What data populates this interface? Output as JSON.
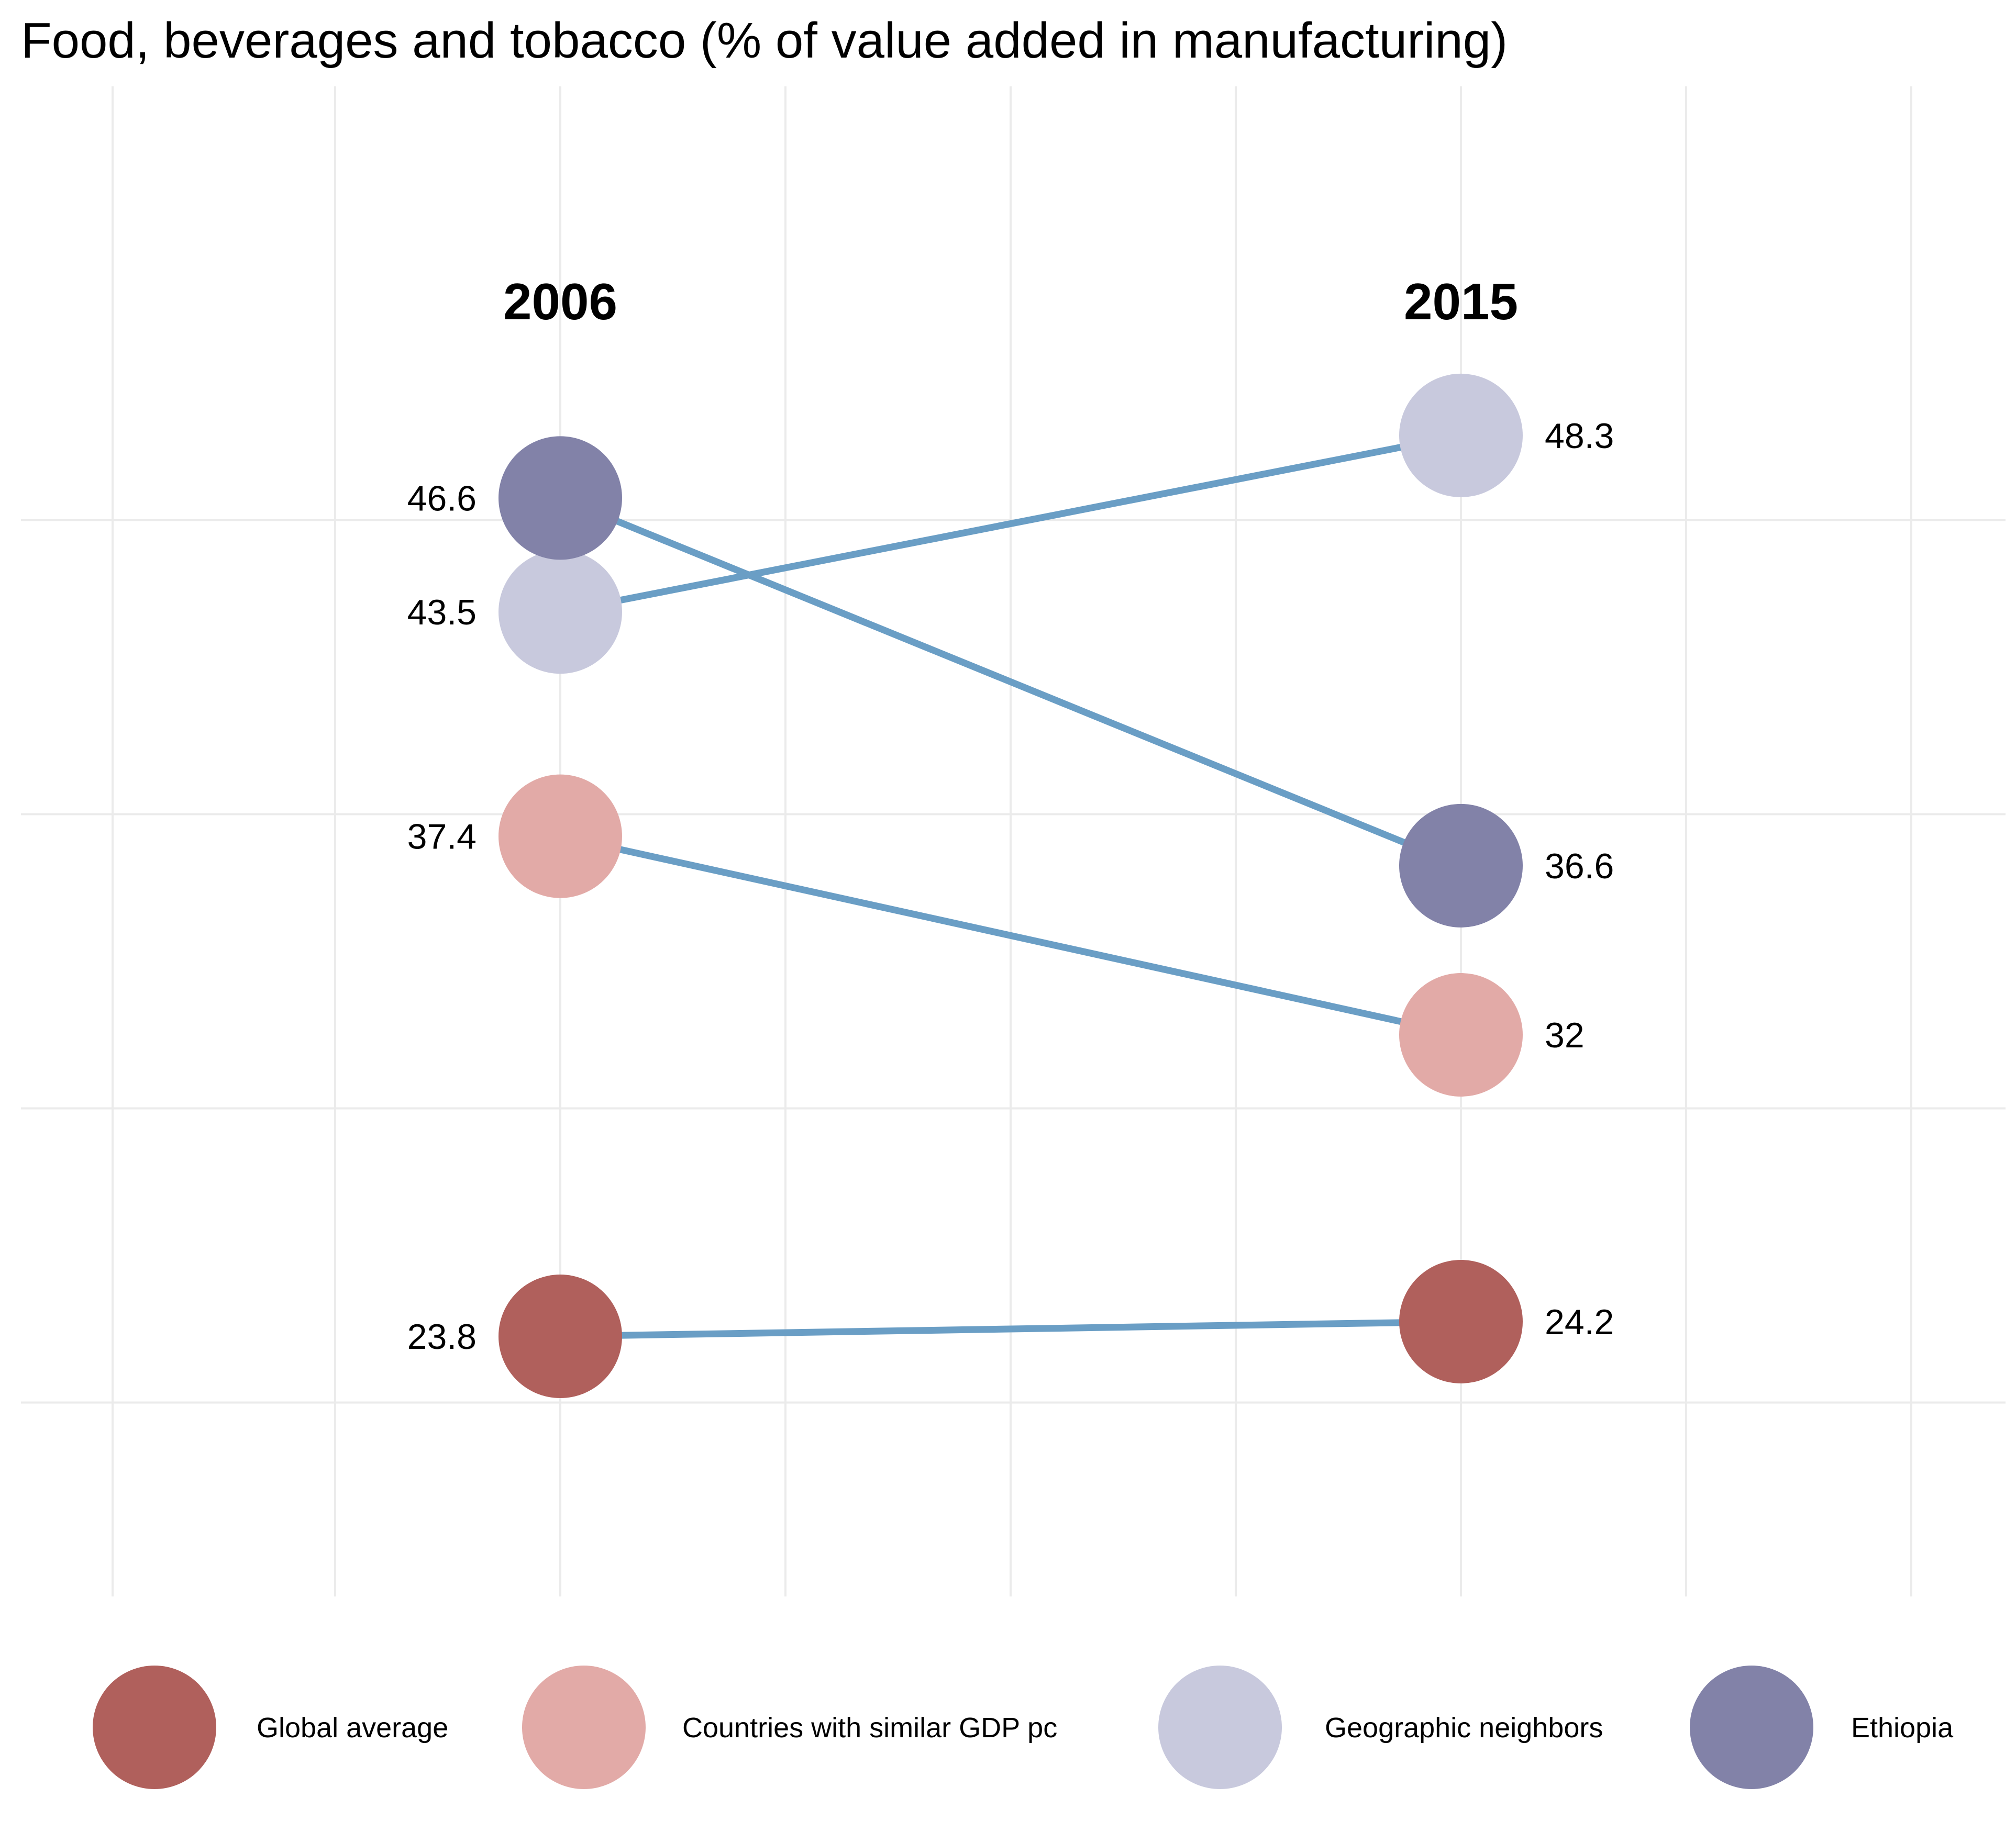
{
  "chart_data": {
    "type": "slope",
    "title": "Food, beverages and tobacco (% of value added in manufacturing)",
    "x_labels": [
      "2006",
      "2015"
    ],
    "ylim": [
      20,
      52
    ],
    "grid": true,
    "legend_position": "bottom",
    "line_color": "#6a9ec5",
    "series": [
      {
        "name": "Global average",
        "color": "#b0605c",
        "values": [
          23.8,
          24.2
        ],
        "labels": [
          "23.8",
          "24.2"
        ]
      },
      {
        "name": "Countries with similar GDP pc",
        "color": "#e2aaa7",
        "values": [
          37.4,
          32
        ],
        "labels": [
          "37.4",
          "32"
        ]
      },
      {
        "name": "Geographic neighbors",
        "color": "#c8c9dd",
        "values": [
          43.5,
          48.3
        ],
        "labels": [
          "43.5",
          "48.3"
        ]
      },
      {
        "name": "Ethiopia",
        "color": "#8282a8",
        "values": [
          46.6,
          36.6
        ],
        "labels": [
          "46.6",
          "36.6"
        ]
      }
    ]
  }
}
